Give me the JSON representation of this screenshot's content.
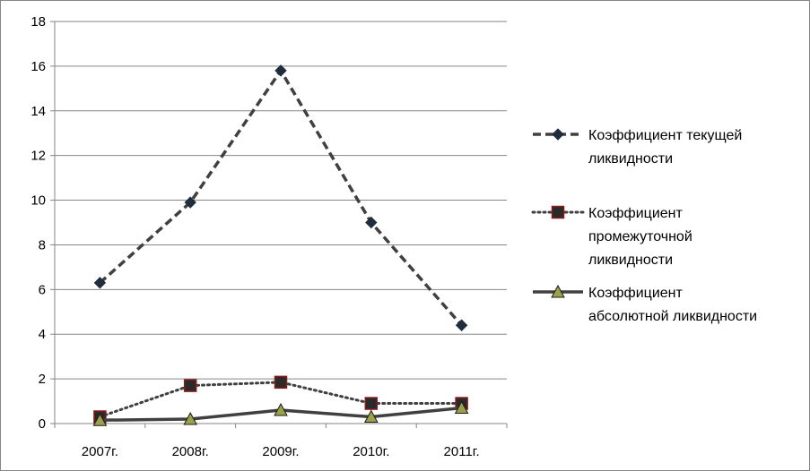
{
  "chart_data": {
    "type": "line",
    "title": "",
    "xlabel": "",
    "ylabel": "",
    "categories": [
      "2007г.",
      "2008г.",
      "2009г.",
      "2010г.",
      "2011г."
    ],
    "ylim": [
      0,
      18
    ],
    "yticks": [
      "0",
      "2",
      "4",
      "6",
      "8",
      "10",
      "12",
      "14",
      "16",
      "18"
    ],
    "grid": "horizontal",
    "legend_position": "right",
    "series": [
      {
        "name": "Коэффициент текущей ликвидности",
        "name_lines": [
          "Коэффициент текущей",
          "ликвидности"
        ],
        "values": [
          6.3,
          9.9,
          15.8,
          9.0,
          4.4
        ],
        "line_style": "dashed",
        "marker": "diamond",
        "color": "#404040",
        "marker_fill": "#1f2d3d"
      },
      {
        "name": "Коэффициент промежуточной ликвидности",
        "name_lines": [
          "Коэффициент",
          "промежуточной",
          "ликвидности"
        ],
        "values": [
          0.3,
          1.7,
          1.85,
          0.9,
          0.9
        ],
        "line_style": "dotted",
        "marker": "square",
        "color": "#404040",
        "marker_fill": "#2a2a2a",
        "marker_stroke": "#8b1a1a"
      },
      {
        "name": "Коэффициент абсолютной ликвидности",
        "name_lines": [
          "Коэффициент",
          "абсолютной ликвидности"
        ],
        "values": [
          0.15,
          0.2,
          0.6,
          0.3,
          0.7
        ],
        "line_style": "solid",
        "marker": "triangle",
        "color": "#404040",
        "marker_fill": "#9aa14a",
        "marker_stroke": "#1a1a1a"
      }
    ]
  }
}
